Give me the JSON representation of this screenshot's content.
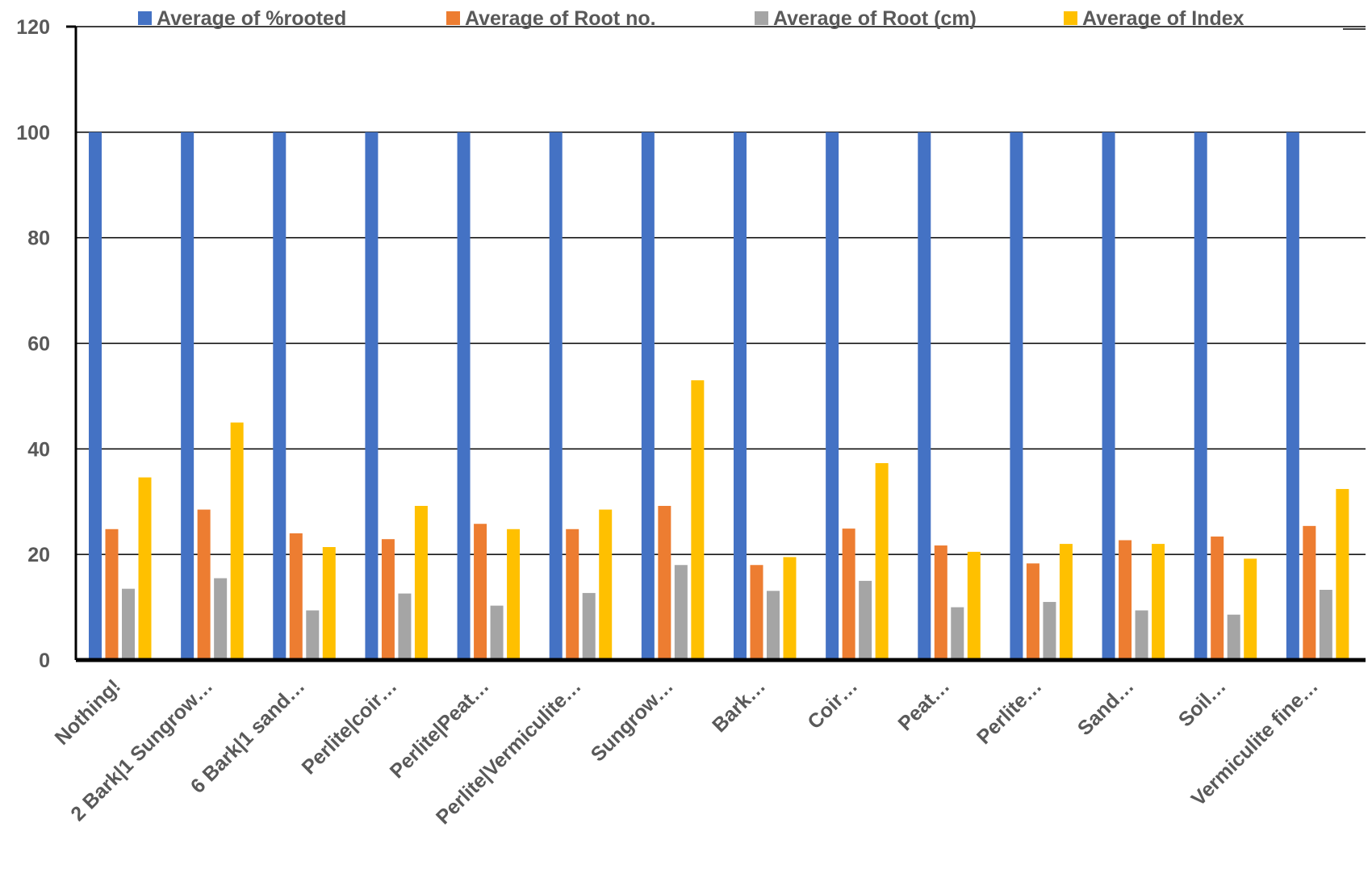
{
  "chart_data": {
    "type": "bar",
    "title": "",
    "xlabel": "",
    "ylabel": "",
    "ylim": [
      0,
      120
    ],
    "yticks": [
      0,
      20,
      40,
      60,
      80,
      100,
      120
    ],
    "grid": true,
    "legend_position": "top",
    "categories": [
      "Nothing!",
      "2 Bark|1 Sungrow…",
      "6 Bark|1 sand…",
      "Perlite|coir…",
      "Perlite|Peat…",
      "Perlite|Vermiculite…",
      "Sungrow…",
      "Bark…",
      "Coir…",
      "Peat…",
      "Perlite…",
      "Sand…",
      "Soil…",
      "Vermiculite fine…"
    ],
    "series": [
      {
        "name": "Average of %rooted",
        "color": "#4472C4",
        "values": [
          100,
          100,
          100,
          100,
          100,
          100,
          100,
          100,
          100,
          100,
          100,
          100,
          100,
          100
        ]
      },
      {
        "name": "Average of Root no.",
        "color": "#ED7D31",
        "values": [
          24.8,
          28.5,
          24.0,
          22.9,
          25.8,
          24.8,
          29.2,
          18.0,
          24.9,
          21.7,
          18.3,
          22.7,
          23.4,
          25.4
        ]
      },
      {
        "name": "Average of Root (cm)",
        "color": "#A5A5A5",
        "values": [
          13.5,
          15.5,
          9.4,
          12.6,
          10.3,
          12.7,
          18.0,
          13.1,
          15.0,
          10.0,
          11.0,
          9.4,
          8.6,
          13.3
        ]
      },
      {
        "name": "Average of Index",
        "color": "#FFC000",
        "values": [
          34.6,
          45.0,
          21.4,
          29.2,
          24.8,
          28.5,
          53.0,
          19.5,
          37.3,
          20.5,
          22.0,
          22.0,
          19.2,
          32.4
        ]
      }
    ]
  }
}
